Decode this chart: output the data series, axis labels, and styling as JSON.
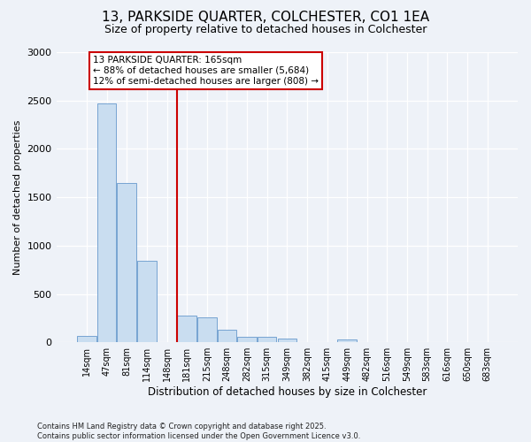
{
  "title": "13, PARKSIDE QUARTER, COLCHESTER, CO1 1EA",
  "subtitle": "Size of property relative to detached houses in Colchester",
  "xlabel": "Distribution of detached houses by size in Colchester",
  "ylabel": "Number of detached properties",
  "categories": [
    "14sqm",
    "47sqm",
    "81sqm",
    "114sqm",
    "148sqm",
    "181sqm",
    "215sqm",
    "248sqm",
    "282sqm",
    "315sqm",
    "349sqm",
    "382sqm",
    "415sqm",
    "449sqm",
    "482sqm",
    "516sqm",
    "549sqm",
    "583sqm",
    "616sqm",
    "650sqm",
    "683sqm"
  ],
  "values": [
    70,
    2470,
    1650,
    840,
    0,
    280,
    260,
    130,
    55,
    55,
    40,
    5,
    0,
    30,
    0,
    0,
    0,
    0,
    0,
    0,
    0
  ],
  "bar_color": "#c9ddf0",
  "bar_edge_color": "#6699cc",
  "vline_x": 4.5,
  "vline_color": "#cc0000",
  "annotation_text": "13 PARKSIDE QUARTER: 165sqm\n← 88% of detached houses are smaller (5,684)\n12% of semi-detached houses are larger (808) →",
  "annotation_box_color": "#ffffff",
  "annotation_box_edge": "#cc0000",
  "ylim": [
    0,
    3000
  ],
  "yticks": [
    0,
    500,
    1000,
    1500,
    2000,
    2500,
    3000
  ],
  "background_color": "#eef2f8",
  "plot_bg_color": "#eef2f8",
  "footer_text": "Contains HM Land Registry data © Crown copyright and database right 2025.\nContains public sector information licensed under the Open Government Licence v3.0.",
  "title_fontsize": 11,
  "subtitle_fontsize": 9,
  "annotation_fontsize": 7.5,
  "xlabel_fontsize": 8.5,
  "ylabel_fontsize": 8,
  "xtick_fontsize": 7,
  "ytick_fontsize": 8,
  "footer_fontsize": 6
}
